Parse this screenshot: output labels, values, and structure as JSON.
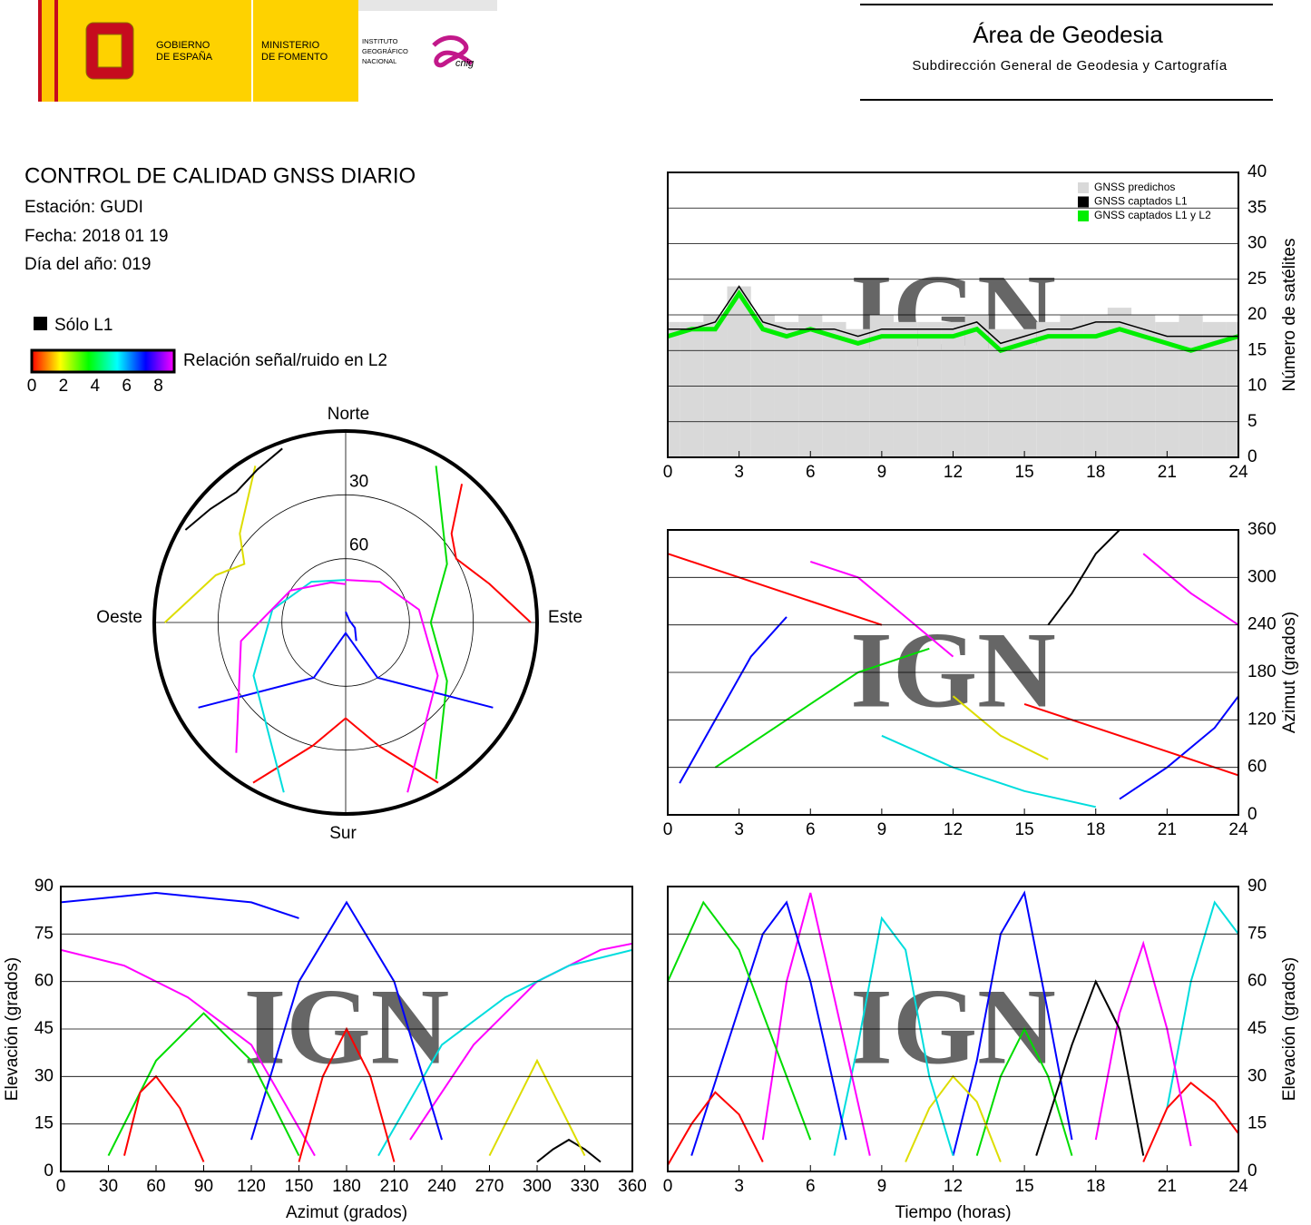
{
  "header": {
    "gobierno": [
      "GOBIERNO",
      "DE ESPAÑA"
    ],
    "ministerio": [
      "MINISTERIO",
      "DE FOMENTO"
    ],
    "instituto": [
      "INSTITUTO",
      "GEOGRÁFICO",
      "NACIONAL"
    ],
    "cnig": "cnig",
    "area": "Área de Geodesia",
    "subdireccion": "Subdirección General de Geodesia y Cartografía"
  },
  "report": {
    "title": "CONTROL DE CALIDAD GNSS DIARIO",
    "station": "Estación: GUDI",
    "date": "Fecha: 2018 01 19",
    "doy": "Día del año: 019"
  },
  "colorbar": {
    "l1_label": "Sólo L1",
    "l1_color": "#000000",
    "label": "Relación señal/ruido en L2",
    "lim": [
      0,
      9
    ],
    "ticks": [
      0,
      2,
      4,
      6,
      8
    ],
    "colors": [
      "#ff0000",
      "#ffff00",
      "#00ff00",
      "#00ffff",
      "#0000ff",
      "#ff00ff"
    ]
  },
  "watermark": "IGN",
  "chart_data": [
    {
      "type": "line",
      "ylabel": "Número de satélites",
      "y_axis_side": "right",
      "xlim": [
        0,
        24
      ],
      "xticks": [
        0,
        3,
        6,
        9,
        12,
        15,
        18,
        21,
        24
      ],
      "ylim": [
        0,
        40
      ],
      "yticks": [
        0,
        5,
        10,
        15,
        20,
        25,
        30,
        35,
        40
      ],
      "grid": true,
      "legend": "top-right",
      "x": [
        0,
        1,
        2,
        3,
        4,
        5,
        6,
        7,
        8,
        9,
        10,
        11,
        12,
        13,
        14,
        15,
        16,
        17,
        18,
        19,
        20,
        21,
        22,
        23,
        24
      ],
      "series": [
        {
          "name": "GNSS predichos",
          "color": "#d9d9d9",
          "style": "bar",
          "values": [
            19,
            19,
            20,
            24,
            20,
            19,
            20,
            19,
            18,
            20,
            19,
            19,
            19,
            20,
            18,
            18,
            19,
            20,
            20,
            21,
            20,
            19,
            20,
            19,
            19
          ]
        },
        {
          "name": "GNSS captados L1",
          "color": "#000000",
          "style": "line",
          "width": 1.5,
          "values": [
            18,
            18,
            19,
            24,
            19,
            18,
            18,
            18,
            17,
            18,
            18,
            18,
            18,
            19,
            16,
            17,
            18,
            18,
            19,
            19,
            18,
            17,
            17,
            17,
            17
          ]
        },
        {
          "name": "GNSS captados L1 y L2",
          "color": "#00ee00",
          "style": "line",
          "width": 5,
          "values": [
            17,
            18,
            18,
            23,
            18,
            17,
            18,
            17,
            16,
            17,
            17,
            17,
            17,
            18,
            15,
            16,
            17,
            17,
            17,
            18,
            17,
            16,
            15,
            16,
            17
          ]
        }
      ]
    },
    {
      "type": "line",
      "ylabel": "Azimut (grados)",
      "y_axis_side": "right",
      "xlim": [
        0,
        24
      ],
      "xticks": [
        0,
        3,
        6,
        9,
        12,
        15,
        18,
        21,
        24
      ],
      "ylim": [
        0,
        360
      ],
      "yticks": [
        0,
        60,
        120,
        180,
        240,
        300,
        360
      ],
      "grid": true,
      "series": [
        {
          "color": "#ff0000",
          "x": [
            0,
            3,
            6,
            9
          ],
          "values": [
            330,
            300,
            270,
            240
          ]
        },
        {
          "color": "#0000ff",
          "x": [
            0.5,
            2,
            3.5,
            5
          ],
          "values": [
            40,
            120,
            200,
            250
          ]
        },
        {
          "color": "#00dd00",
          "x": [
            2,
            5,
            8,
            11
          ],
          "values": [
            60,
            120,
            180,
            210
          ]
        },
        {
          "color": "#ff00ff",
          "x": [
            6,
            8,
            10,
            12
          ],
          "values": [
            320,
            300,
            250,
            200
          ]
        },
        {
          "color": "#00dddd",
          "x": [
            9,
            12,
            15,
            18
          ],
          "values": [
            100,
            60,
            30,
            10
          ]
        },
        {
          "color": "#000000",
          "x": [
            16,
            17,
            18,
            19
          ],
          "values": [
            240,
            280,
            330,
            360
          ]
        },
        {
          "color": "#dddd00",
          "x": [
            12,
            14,
            16
          ],
          "values": [
            150,
            100,
            70
          ]
        },
        {
          "color": "#ff0000",
          "x": [
            15,
            18,
            21,
            24
          ],
          "values": [
            140,
            110,
            80,
            50
          ]
        },
        {
          "color": "#0000ff",
          "x": [
            19,
            21,
            23,
            24
          ],
          "values": [
            20,
            60,
            110,
            150
          ]
        },
        {
          "color": "#ff00ff",
          "x": [
            20,
            22,
            24
          ],
          "values": [
            330,
            280,
            240
          ]
        }
      ]
    },
    {
      "type": "polar",
      "direction_labels": [
        "Norte",
        "Este",
        "Sur",
        "Oeste"
      ],
      "rlim": [
        90,
        0
      ],
      "rticks": [
        30,
        60
      ],
      "series": [
        {
          "color": "#ff0000",
          "x": [
            40,
            50,
            60,
            75,
            90
          ],
          "values": [
            5,
            25,
            30,
            20,
            3
          ]
        },
        {
          "color": "#ff0000",
          "x": [
            150,
            165,
            180,
            195,
            210
          ],
          "values": [
            3,
            30,
            45,
            30,
            3
          ]
        },
        {
          "color": "#00dd00",
          "x": [
            30,
            60,
            90,
            120,
            150
          ],
          "values": [
            5,
            35,
            50,
            35,
            5
          ]
        },
        {
          "color": "#0000ff",
          "x": [
            120,
            150,
            180,
            210,
            240
          ],
          "values": [
            10,
            60,
            85,
            60,
            10
          ]
        },
        {
          "color": "#ff00ff",
          "x": [
            0,
            40,
            80,
            120,
            160
          ],
          "values": [
            70,
            65,
            55,
            40,
            5
          ]
        },
        {
          "color": "#00dddd",
          "x": [
            200,
            240,
            280,
            320,
            360
          ],
          "values": [
            5,
            40,
            55,
            65,
            70
          ]
        },
        {
          "color": "#dddd00",
          "x": [
            270,
            290,
            300,
            310,
            330
          ],
          "values": [
            5,
            25,
            35,
            25,
            5
          ]
        },
        {
          "color": "#000000",
          "x": [
            300,
            310,
            320,
            330,
            340
          ],
          "values": [
            3,
            7,
            10,
            7,
            3
          ]
        },
        {
          "color": "#0000ff",
          "x": [
            0,
            60,
            120,
            150
          ],
          "values": [
            85,
            88,
            85,
            80
          ]
        },
        {
          "color": "#ff00ff",
          "x": [
            220,
            260,
            300,
            340,
            360
          ],
          "values": [
            10,
            40,
            60,
            70,
            72
          ]
        }
      ]
    },
    {
      "type": "line",
      "xlabel": "Azimut (grados)",
      "ylabel": "Elevación (grados)",
      "y_axis_side": "left",
      "xlim": [
        0,
        360
      ],
      "xticks": [
        0,
        30,
        60,
        90,
        120,
        150,
        180,
        210,
        240,
        270,
        300,
        330,
        360
      ],
      "ylim": [
        0,
        90
      ],
      "yticks": [
        0,
        15,
        30,
        45,
        60,
        75,
        90
      ],
      "grid": true,
      "series": [
        {
          "color": "#ff0000",
          "x": [
            40,
            50,
            60,
            75,
            90
          ],
          "values": [
            5,
            25,
            30,
            20,
            3
          ]
        },
        {
          "color": "#ff0000",
          "x": [
            150,
            165,
            180,
            195,
            210
          ],
          "values": [
            3,
            30,
            45,
            30,
            3
          ]
        },
        {
          "color": "#00dd00",
          "x": [
            30,
            60,
            90,
            120,
            150
          ],
          "values": [
            5,
            35,
            50,
            35,
            5
          ]
        },
        {
          "color": "#0000ff",
          "x": [
            120,
            150,
            180,
            210,
            240
          ],
          "values": [
            10,
            60,
            85,
            60,
            10
          ]
        },
        {
          "color": "#ff00ff",
          "x": [
            0,
            40,
            80,
            120,
            160
          ],
          "values": [
            70,
            65,
            55,
            40,
            5
          ]
        },
        {
          "color": "#00dddd",
          "x": [
            200,
            240,
            280,
            320,
            360
          ],
          "values": [
            5,
            40,
            55,
            65,
            70
          ]
        },
        {
          "color": "#dddd00",
          "x": [
            270,
            290,
            300,
            310,
            330
          ],
          "values": [
            5,
            25,
            35,
            25,
            5
          ]
        },
        {
          "color": "#000000",
          "x": [
            300,
            310,
            320,
            330,
            340
          ],
          "values": [
            3,
            7,
            10,
            7,
            3
          ]
        },
        {
          "color": "#0000ff",
          "x": [
            0,
            60,
            120,
            150
          ],
          "values": [
            85,
            88,
            85,
            80
          ]
        },
        {
          "color": "#ff00ff",
          "x": [
            220,
            260,
            300,
            340,
            360
          ],
          "values": [
            10,
            40,
            60,
            70,
            72
          ]
        }
      ]
    },
    {
      "type": "line",
      "xlabel": "Tiempo (horas)",
      "ylabel": "Elevación (grados)",
      "y_axis_side": "right",
      "xlim": [
        0,
        24
      ],
      "xticks": [
        0,
        3,
        6,
        9,
        12,
        15,
        18,
        21,
        24
      ],
      "ylim": [
        0,
        90
      ],
      "yticks": [
        0,
        15,
        30,
        45,
        60,
        75,
        90
      ],
      "grid": true,
      "series": [
        {
          "color": "#ff0000",
          "x": [
            0,
            1,
            2,
            3,
            4
          ],
          "values": [
            2,
            15,
            25,
            18,
            3
          ]
        },
        {
          "color": "#00dd00",
          "x": [
            0,
            1.5,
            3,
            4.5,
            6
          ],
          "values": [
            60,
            85,
            70,
            40,
            10
          ]
        },
        {
          "color": "#0000ff",
          "x": [
            1,
            2.5,
            4,
            5,
            6,
            7.5
          ],
          "values": [
            5,
            40,
            75,
            85,
            60,
            10
          ]
        },
        {
          "color": "#ff00ff",
          "x": [
            4,
            5,
            6,
            7,
            8.5
          ],
          "values": [
            10,
            60,
            88,
            55,
            5
          ]
        },
        {
          "color": "#00dddd",
          "x": [
            7,
            8,
            9,
            10,
            11,
            12
          ],
          "values": [
            5,
            40,
            80,
            70,
            30,
            5
          ]
        },
        {
          "color": "#000000",
          "x": [
            15.5,
            17,
            18,
            19,
            20
          ],
          "values": [
            5,
            40,
            60,
            45,
            5
          ]
        },
        {
          "color": "#dddd00",
          "x": [
            10,
            11,
            12,
            13,
            14
          ],
          "values": [
            3,
            20,
            30,
            22,
            3
          ]
        },
        {
          "color": "#0000ff",
          "x": [
            12,
            13,
            14,
            15,
            16,
            17
          ],
          "values": [
            5,
            35,
            75,
            88,
            50,
            10
          ]
        },
        {
          "color": "#ff00ff",
          "x": [
            18,
            19,
            20,
            21,
            22
          ],
          "values": [
            10,
            50,
            72,
            45,
            8
          ]
        },
        {
          "color": "#ff0000",
          "x": [
            20,
            21,
            22,
            23,
            24
          ],
          "values": [
            3,
            20,
            28,
            22,
            12
          ]
        },
        {
          "color": "#00dddd",
          "x": [
            21,
            22,
            23,
            24
          ],
          "values": [
            20,
            60,
            85,
            75
          ]
        },
        {
          "color": "#00dd00",
          "x": [
            13,
            14,
            15,
            16,
            17
          ],
          "values": [
            5,
            30,
            45,
            30,
            5
          ]
        }
      ]
    }
  ]
}
